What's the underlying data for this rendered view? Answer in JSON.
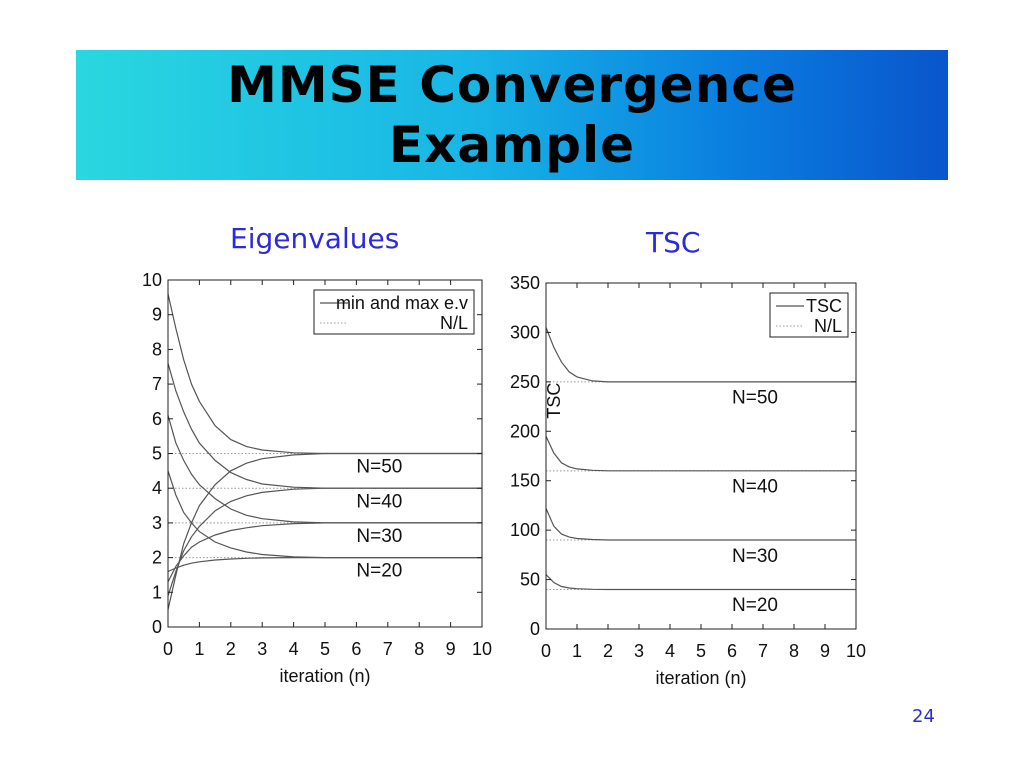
{
  "slide": {
    "title_line1": "MMSE Convergence",
    "title_line2": "Example",
    "page_number": "24"
  },
  "colors": {
    "banner_start": "#2ad7df",
    "banner_end": "#0a55cc",
    "chart_title": "#2b2bd8",
    "curve": "#555555",
    "reference": "#999999"
  },
  "chart_data": [
    {
      "type": "line",
      "title": "Eigenvalues",
      "xlabel": "iteration (n)",
      "ylabel": "",
      "xlim": [
        0,
        10
      ],
      "ylim": [
        0,
        10
      ],
      "xticks": [
        "0",
        "1",
        "2",
        "3",
        "4",
        "5",
        "6",
        "7",
        "8",
        "9",
        "10"
      ],
      "yticks": [
        "0",
        "1",
        "2",
        "3",
        "4",
        "5",
        "6",
        "7",
        "8",
        "9",
        "10"
      ],
      "grid": false,
      "legend_position": "top-right",
      "legend": [
        "min and max e.v",
        "N/L"
      ],
      "x": [
        0,
        0.25,
        0.5,
        0.75,
        1,
        1.5,
        2,
        2.5,
        3,
        4,
        5,
        6,
        7,
        8,
        9,
        10
      ],
      "series": [
        {
          "name": "min and max e.v",
          "group": "N=50",
          "values": [
            9.6,
            8.6,
            7.7,
            7.0,
            6.5,
            5.8,
            5.4,
            5.2,
            5.1,
            5.02,
            5.0,
            5.0,
            5.0,
            5.0,
            5.0,
            5.0
          ]
        },
        {
          "name": "min and max e.v",
          "group": "N=50",
          "values": [
            0.5,
            1.5,
            2.4,
            3.0,
            3.5,
            4.1,
            4.5,
            4.72,
            4.85,
            4.96,
            5.0,
            5.0,
            5.0,
            5.0,
            5.0,
            5.0
          ]
        },
        {
          "name": "min and max e.v",
          "group": "N=40",
          "values": [
            7.6,
            6.8,
            6.2,
            5.7,
            5.3,
            4.8,
            4.45,
            4.25,
            4.12,
            4.03,
            4.0,
            4.0,
            4.0,
            4.0,
            4.0,
            4.0
          ]
        },
        {
          "name": "min and max e.v",
          "group": "N=40",
          "values": [
            0.9,
            1.6,
            2.2,
            2.6,
            2.9,
            3.35,
            3.62,
            3.78,
            3.88,
            3.97,
            4.0,
            4.0,
            4.0,
            4.0,
            4.0,
            4.0
          ]
        },
        {
          "name": "min and max e.v",
          "group": "N=30",
          "values": [
            6.1,
            5.3,
            4.8,
            4.4,
            4.1,
            3.7,
            3.4,
            3.22,
            3.12,
            3.03,
            3.0,
            3.0,
            3.0,
            3.0,
            3.0,
            3.0
          ]
        },
        {
          "name": "min and max e.v",
          "group": "N=30",
          "values": [
            1.3,
            1.75,
            2.05,
            2.3,
            2.45,
            2.65,
            2.78,
            2.86,
            2.92,
            2.98,
            3.0,
            3.0,
            3.0,
            3.0,
            3.0,
            3.0
          ]
        },
        {
          "name": "min and max e.v",
          "group": "N=20",
          "values": [
            4.5,
            3.8,
            3.3,
            3.0,
            2.75,
            2.45,
            2.28,
            2.16,
            2.09,
            2.02,
            2.0,
            2.0,
            2.0,
            2.0,
            2.0,
            2.0
          ]
        },
        {
          "name": "min and max e.v",
          "group": "N=20",
          "values": [
            1.6,
            1.7,
            1.78,
            1.84,
            1.88,
            1.93,
            1.96,
            1.98,
            1.99,
            2.0,
            2.0,
            2.0,
            2.0,
            2.0,
            2.0,
            2.0
          ]
        }
      ],
      "reference_lines": [
        5,
        4,
        3,
        2
      ],
      "annotations": [
        {
          "text": "N=50",
          "x": 6.0,
          "y": 4.45
        },
        {
          "text": "N=40",
          "x": 6.0,
          "y": 3.45
        },
        {
          "text": "N=30",
          "x": 6.0,
          "y": 2.45
        },
        {
          "text": "N=20",
          "x": 6.0,
          "y": 1.45
        }
      ]
    },
    {
      "type": "line",
      "title": "TSC",
      "xlabel": "iteration (n)",
      "ylabel": "TSC",
      "xlim": [
        0,
        10
      ],
      "ylim": [
        0,
        350
      ],
      "xticks": [
        "0",
        "1",
        "2",
        "3",
        "4",
        "5",
        "6",
        "7",
        "8",
        "9",
        "10"
      ],
      "yticks": [
        "0",
        "50",
        "100",
        "150",
        "200",
        "250",
        "300",
        "350"
      ],
      "grid": false,
      "legend_position": "top-right",
      "legend": [
        "TSC",
        "N/L"
      ],
      "x": [
        0,
        0.25,
        0.5,
        0.75,
        1,
        1.5,
        2,
        2.5,
        3,
        4,
        5,
        6,
        7,
        8,
        9,
        10
      ],
      "series": [
        {
          "name": "TSC",
          "group": "N=50",
          "values": [
            305,
            285,
            270,
            260,
            255,
            251,
            250,
            250,
            250,
            250,
            250,
            250,
            250,
            250,
            250,
            250
          ]
        },
        {
          "name": "TSC",
          "group": "N=40",
          "values": [
            195,
            178,
            168,
            164,
            162,
            160.5,
            160,
            160,
            160,
            160,
            160,
            160,
            160,
            160,
            160,
            160
          ]
        },
        {
          "name": "TSC",
          "group": "N=30",
          "values": [
            122,
            104,
            96,
            93,
            91.5,
            90.5,
            90,
            90,
            90,
            90,
            90,
            90,
            90,
            90,
            90,
            90
          ]
        },
        {
          "name": "TSC",
          "group": "N=20",
          "values": [
            55,
            47,
            43,
            41.5,
            40.8,
            40.2,
            40,
            40,
            40,
            40,
            40,
            40,
            40,
            40,
            40,
            40
          ]
        }
      ],
      "reference_lines": [
        250,
        160,
        90,
        40
      ],
      "annotations": [
        {
          "text": "N=50",
          "x": 6.0,
          "y": 228
        },
        {
          "text": "N=40",
          "x": 6.0,
          "y": 138
        },
        {
          "text": "N=30",
          "x": 6.0,
          "y": 68
        },
        {
          "text": "N=20",
          "x": 6.0,
          "y": 18
        }
      ]
    }
  ]
}
